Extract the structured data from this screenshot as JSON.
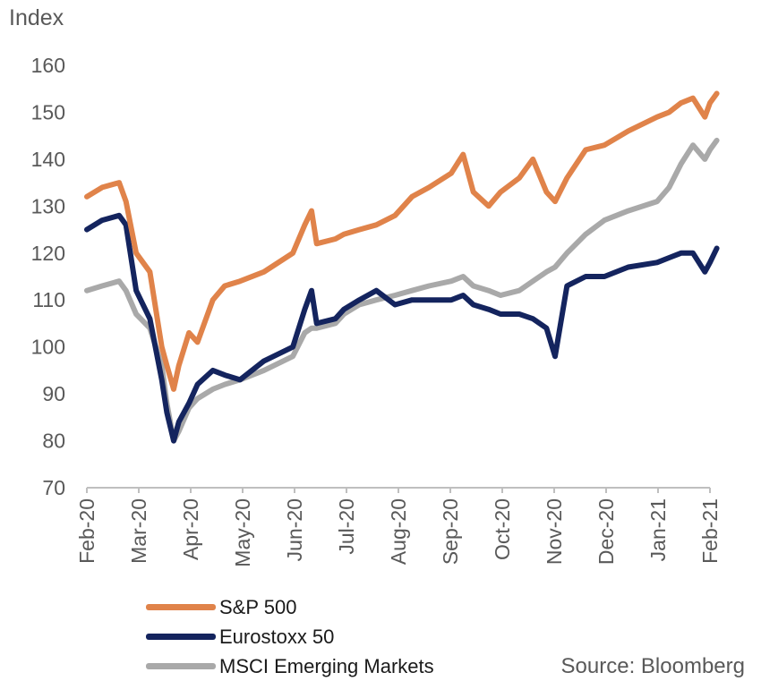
{
  "chart_data": {
    "type": "line",
    "ylabel": "Index",
    "ylim": [
      70,
      160
    ],
    "y_ticks": [
      70,
      80,
      90,
      100,
      110,
      120,
      130,
      140,
      150,
      160
    ],
    "x_ticks": [
      "Feb-20",
      "Mar-20",
      "Apr-20",
      "May-20",
      "Jun-20",
      "Jul-20",
      "Aug-20",
      "Sep-20",
      "Oct-20",
      "Nov-20",
      "Dec-20",
      "Jan-21",
      "Feb-21"
    ],
    "x": [
      "2020-02-01",
      "2020-02-10",
      "2020-02-20",
      "2020-02-24",
      "2020-03-01",
      "2020-03-09",
      "2020-03-16",
      "2020-03-19",
      "2020-03-23",
      "2020-03-26",
      "2020-04-01",
      "2020-04-06",
      "2020-04-15",
      "2020-04-22",
      "2020-05-01",
      "2020-05-15",
      "2020-06-01",
      "2020-06-08",
      "2020-06-12",
      "2020-06-15",
      "2020-06-26",
      "2020-07-01",
      "2020-07-10",
      "2020-07-20",
      "2020-07-31",
      "2020-08-10",
      "2020-08-20",
      "2020-09-02",
      "2020-09-09",
      "2020-09-15",
      "2020-09-24",
      "2020-10-01",
      "2020-10-12",
      "2020-10-20",
      "2020-10-28",
      "2020-11-02",
      "2020-11-09",
      "2020-11-20",
      "2020-12-01",
      "2020-12-15",
      "2021-01-01",
      "2021-01-08",
      "2021-01-15",
      "2021-01-22",
      "2021-01-29",
      "2021-02-01",
      "2021-02-05"
    ],
    "series": [
      {
        "name": "S&P 500",
        "color": "#e0834a",
        "values": [
          132,
          134,
          135,
          131,
          120,
          116,
          100,
          96,
          91,
          96,
          103,
          101,
          110,
          113,
          114,
          116,
          120,
          126,
          129,
          122,
          123,
          124,
          125,
          126,
          128,
          132,
          134,
          137,
          141,
          133,
          130,
          133,
          136,
          140,
          133,
          131,
          136,
          142,
          143,
          146,
          149,
          150,
          152,
          153,
          149,
          152,
          154
        ]
      },
      {
        "name": "Eurostoxx 50",
        "color": "#14245e",
        "values": [
          125,
          127,
          128,
          126,
          112,
          106,
          93,
          86,
          80,
          84,
          88,
          92,
          95,
          94,
          93,
          97,
          100,
          108,
          112,
          105,
          106,
          108,
          110,
          112,
          109,
          110,
          110,
          110,
          111,
          109,
          108,
          107,
          107,
          106,
          104,
          98,
          113,
          115,
          115,
          117,
          118,
          119,
          120,
          120,
          116,
          118,
          121
        ]
      },
      {
        "name": "MSCI Emerging Markets",
        "color": "#a9a9a9",
        "values": [
          112,
          113,
          114,
          112,
          107,
          104,
          96,
          88,
          80,
          82,
          87,
          89,
          91,
          92,
          93,
          95,
          98,
          103,
          104,
          104,
          105,
          107,
          109,
          110,
          111,
          112,
          113,
          114,
          115,
          113,
          112,
          111,
          112,
          114,
          116,
          117,
          120,
          124,
          127,
          129,
          131,
          134,
          139,
          143,
          140,
          142,
          144
        ]
      }
    ],
    "legend_position": "bottom-left",
    "grid": false,
    "annotations": [
      "Source: Bloomberg"
    ]
  }
}
